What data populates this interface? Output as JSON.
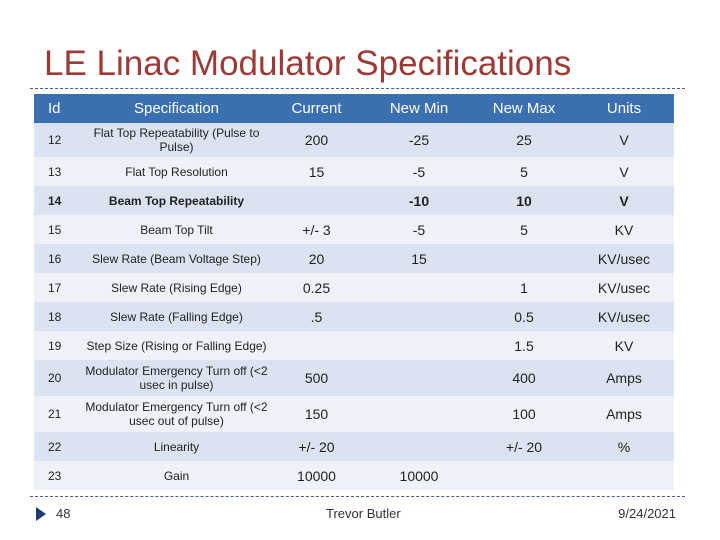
{
  "slide": {
    "title": "LE Linac Modulator Specifications",
    "page_number": "48",
    "author": "Trevor Butler",
    "date": "9/24/2021"
  },
  "table": {
    "headers": {
      "id": "Id",
      "spec": "Specification",
      "current": "Current",
      "new_min": "New Min",
      "new_max": "New Max",
      "units": "Units"
    },
    "rows": [
      {
        "id": "12",
        "spec": "Flat Top Repeatability (Pulse to Pulse)",
        "current": "200",
        "new_min": "-25",
        "new_max": "25",
        "units": "V"
      },
      {
        "id": "13",
        "spec": "Flat Top Resolution",
        "current": "15",
        "new_min": "-5",
        "new_max": "5",
        "units": "V"
      },
      {
        "id": "14",
        "spec": "Beam Top Repeatability",
        "current": "",
        "new_min": "-10",
        "new_max": "10",
        "units": "V"
      },
      {
        "id": "15",
        "spec": "Beam Top Tilt",
        "current": "+/- 3",
        "new_min": "-5",
        "new_max": "5",
        "units": "KV"
      },
      {
        "id": "16",
        "spec": "Slew Rate (Beam Voltage Step)",
        "current": "20",
        "new_min": "15",
        "new_max": "",
        "units": "KV/usec"
      },
      {
        "id": "17",
        "spec": "Slew Rate (Rising Edge)",
        "current": "0.25",
        "new_min": "",
        "new_max": "1",
        "units": "KV/usec"
      },
      {
        "id": "18",
        "spec": "Slew Rate (Falling Edge)",
        "current": ".5",
        "new_min": "",
        "new_max": "0.5",
        "units": "KV/usec"
      },
      {
        "id": "19",
        "spec": "Step Size (Rising or Falling Edge)",
        "current": "",
        "new_min": "",
        "new_max": "1.5",
        "units": "KV"
      },
      {
        "id": "20",
        "spec": "Modulator Emergency Turn off (<2 usec in pulse)",
        "current": "500",
        "new_min": "",
        "new_max": "400",
        "units": "Amps"
      },
      {
        "id": "21",
        "spec": "Modulator Emergency Turn off (<2 usec out of pulse)",
        "current": "150",
        "new_min": "",
        "new_max": "100",
        "units": "Amps"
      },
      {
        "id": "22",
        "spec": "Linearity",
        "current": "+/- 20",
        "new_min": "",
        "new_max": "+/- 20",
        "units": "%"
      },
      {
        "id": "23",
        "spec": "Gain",
        "current": "10000",
        "new_min": "10000",
        "new_max": "",
        "units": ""
      }
    ]
  },
  "colors": {
    "title": "#9b3a36",
    "header_bg": "#3a6fb0",
    "row_odd": "#dbe3f0",
    "row_even": "#eef2f8"
  }
}
